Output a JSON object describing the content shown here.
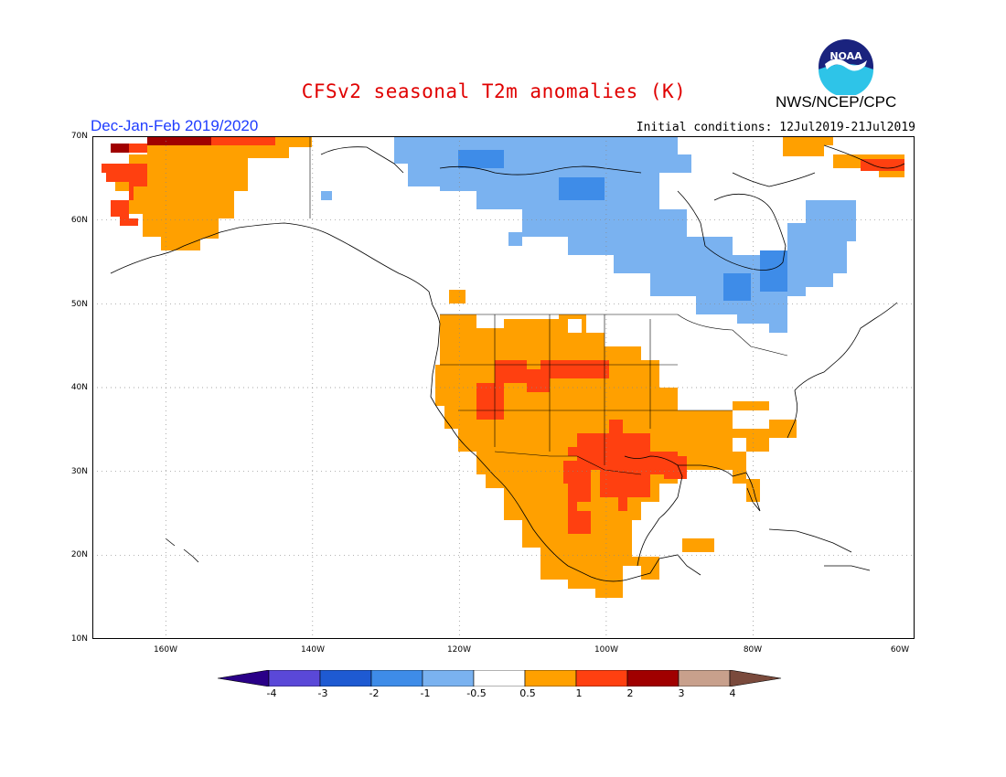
{
  "header": {
    "title": "CFSv2 seasonal T2m anomalies (K)",
    "agency": "NWS/NCEP/CPC",
    "season": "Dec-Jan-Feb 2019/2020",
    "initial_conditions": "Initial conditions: 12Jul2019-21Jul2019",
    "logo_text": "NOAA"
  },
  "map": {
    "projection": "cylindrical equidistant",
    "lon_range": [
      -172,
      -60
    ],
    "lat_range": [
      10,
      70
    ],
    "lat_labels": [
      "70N",
      "60N",
      "50N",
      "40N",
      "30N",
      "20N",
      "10N"
    ],
    "lon_labels": [
      "160W",
      "140W",
      "120W",
      "100W",
      "80W",
      "60W"
    ],
    "gridlines": "dotted"
  },
  "legend": {
    "units": "K",
    "colors": [
      "#2a0088",
      "#5a48d8",
      "#1e5ad2",
      "#3e8ce8",
      "#7ab2f0",
      "#ffffff",
      "#ffa000",
      "#ff4010",
      "#a00000",
      "#c8a08c",
      "#7a4a3c"
    ],
    "tick_labels": [
      "-4",
      "-3",
      "-2",
      "-1",
      "-0.5",
      "0.5",
      "1",
      "2",
      "3",
      "4"
    ]
  }
}
